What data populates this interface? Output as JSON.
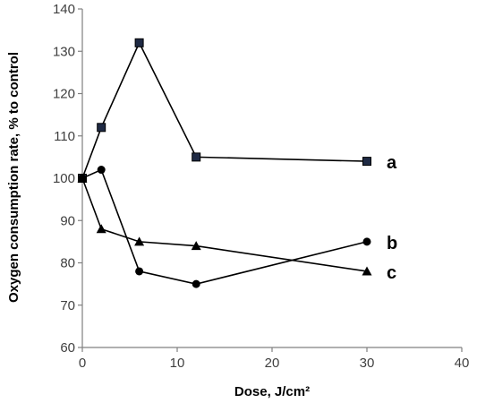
{
  "chart_data": {
    "type": "line",
    "title": "",
    "xlabel": "Dose, J/cm²",
    "ylabel": "Oxygen consumption rate, % to control",
    "xlim": [
      0,
      40
    ],
    "ylim": [
      60,
      140
    ],
    "x_ticks": [
      0,
      10,
      20,
      30,
      40
    ],
    "y_ticks": [
      60,
      70,
      80,
      90,
      100,
      110,
      120,
      130,
      140
    ],
    "grid": false,
    "legend": "none",
    "series": [
      {
        "label": "a",
        "marker": "square",
        "color": "#000000",
        "marker_fill": "#1f2a44",
        "x": [
          0,
          2,
          6,
          12,
          30
        ],
        "y": [
          100,
          112,
          132,
          105,
          104
        ]
      },
      {
        "label": "b",
        "marker": "circle",
        "color": "#000000",
        "marker_fill": "#000000",
        "x": [
          0,
          2,
          6,
          12,
          30
        ],
        "y": [
          100,
          102,
          78,
          75,
          85
        ]
      },
      {
        "label": "c",
        "marker": "triangle",
        "color": "#000000",
        "marker_fill": "#000000",
        "x": [
          0,
          2,
          6,
          12,
          30
        ],
        "y": [
          100,
          88,
          85,
          84,
          78
        ]
      }
    ]
  }
}
